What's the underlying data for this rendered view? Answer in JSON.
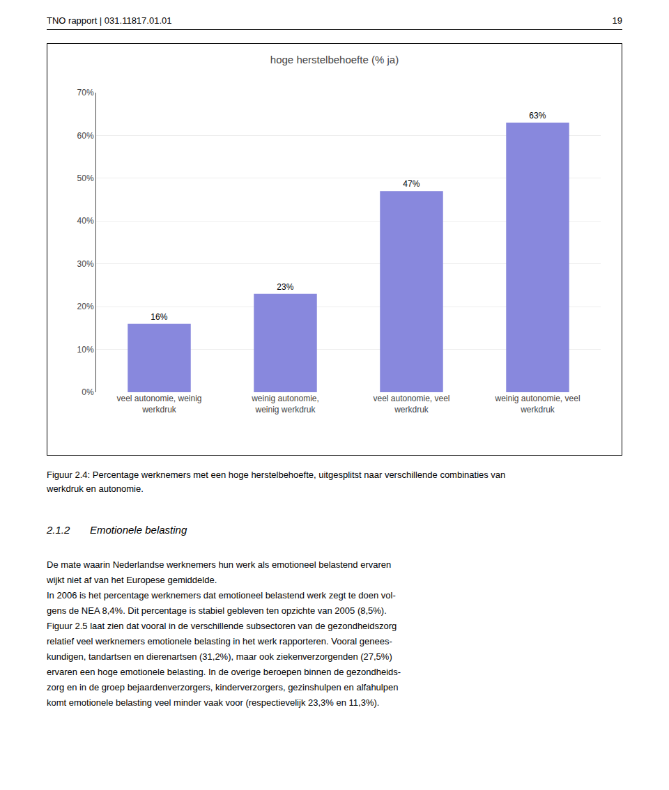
{
  "chart_data": {
    "type": "bar",
    "title": "hoge herstelbehoefte (% ja)",
    "categories": [
      "veel autonomie, weinig\nwerkdruk",
      "weinig autonomie,\nweinig werkdruk",
      "veel autonomie, veel\nwerkdruk",
      "weinig autonomie, veel\nwerkdruk"
    ],
    "values": [
      16,
      23,
      47,
      63
    ],
    "value_labels": [
      "16%",
      "23%",
      "47%",
      "63%"
    ],
    "data_labels": true,
    "color": "#8888dd",
    "ylim": [
      0,
      70
    ],
    "yticks": [
      {
        "value": 0,
        "label": "0%"
      },
      {
        "value": 10,
        "label": "10%"
      },
      {
        "value": 20,
        "label": "20%"
      },
      {
        "value": 30,
        "label": "30%"
      },
      {
        "value": 40,
        "label": "40%"
      },
      {
        "value": 50,
        "label": "50%"
      },
      {
        "value": 60,
        "label": "60%"
      },
      {
        "value": 70,
        "label": "70%"
      }
    ],
    "grid": true,
    "header": [
      "TNO rapport | 031.11817.01.01",
      "19"
    ],
    "caption": [
      "Figuur 2.4: Percentage werknemers met een hoge herstelbehoefte, uitgesplitst naar verschillende combinaties van",
      "werkdruk en autonomie."
    ],
    "section": [
      "2.1.2",
      "Emotionele belasting"
    ],
    "body": [
      "De mate waarin Nederlandse werknemers hun werk als emotioneel belastend ervaren",
      "wijkt niet af van het Europese gemiddelde.",
      "In 2006 is het percentage werknemers dat emotioneel belastend werk zegt te doen vol-",
      "gens de NEA 8,4%. Dit percentage is stabiel gebleven ten opzichte van 2005 (8,5%).",
      "Figuur 2.5 laat zien dat vooral in de verschillende subsectoren van de gezondheidszorg",
      "relatief veel werknemers emotionele belasting in het werk rapporteren. Vooral genees-",
      "kundigen, tandartsen en dierenartsen (31,2%), maar ook ziekenverzorgenden (27,5%)",
      "ervaren een hoge emotionele belasting. In de overige beroepen binnen de gezondheids-",
      "zorg en in de groep bejaardenverzorgers, kinderverzorgers, gezinshulpen en alfahulpen",
      "komt emotionele belasting veel minder vaak voor (respectievelijk 23,3% en 11,3%)."
    ]
  }
}
